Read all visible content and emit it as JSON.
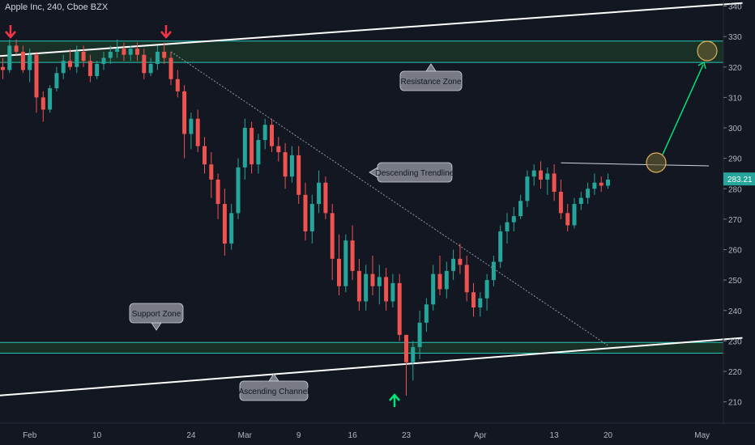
{
  "header": {
    "title": "Apple Inc, 240, Cboe BZX"
  },
  "chart_data": {
    "type": "candlestick",
    "symbol": "Apple Inc",
    "interval": "240",
    "exchange": "Cboe BZX",
    "y_ticks": [
      210,
      220,
      230,
      240,
      250,
      260,
      270,
      280,
      290,
      300,
      310,
      320,
      330,
      340
    ],
    "ylim": [
      203,
      342
    ],
    "x_ticks": [
      {
        "label": "Feb",
        "index": 4
      },
      {
        "label": "10",
        "index": 14
      },
      {
        "label": "24",
        "index": 28
      },
      {
        "label": "Mar",
        "index": 36
      },
      {
        "label": "9",
        "index": 44
      },
      {
        "label": "16",
        "index": 52
      },
      {
        "label": "23",
        "index": 60
      },
      {
        "label": "Apr",
        "index": 71
      },
      {
        "label": "13",
        "index": 82
      },
      {
        "label": "20",
        "index": 90
      },
      {
        "label": "May",
        "index": 104
      }
    ],
    "current_price": 283.21,
    "candles": [
      [
        320,
        323,
        316,
        319
      ],
      [
        319,
        329,
        318,
        327
      ],
      [
        327,
        329,
        324,
        325
      ],
      [
        325,
        327,
        318,
        319
      ],
      [
        319,
        326,
        315,
        324
      ],
      [
        324,
        325,
        305,
        310
      ],
      [
        310,
        312,
        302,
        306
      ],
      [
        306,
        314,
        305,
        313
      ],
      [
        313,
        320,
        312,
        318
      ],
      [
        318,
        324,
        316,
        322
      ],
      [
        322,
        326,
        319,
        320
      ],
      [
        320,
        327,
        318,
        325
      ],
      [
        325,
        327,
        320,
        322
      ],
      [
        322,
        324,
        315,
        317
      ],
      [
        317,
        322,
        316,
        321
      ],
      [
        321,
        325,
        319,
        323
      ],
      [
        323,
        327,
        321,
        325
      ],
      [
        325,
        329,
        323,
        326
      ],
      [
        326,
        328,
        322,
        324
      ],
      [
        324,
        327,
        322,
        326
      ],
      [
        326,
        328,
        322,
        324
      ],
      [
        324,
        326,
        316,
        318
      ],
      [
        318,
        323,
        317,
        321
      ],
      [
        321,
        327,
        319,
        325
      ],
      [
        325,
        328,
        321,
        323
      ],
      [
        323,
        325,
        314,
        316
      ],
      [
        316,
        319,
        310,
        312
      ],
      [
        312,
        314,
        290,
        298
      ],
      [
        298,
        305,
        293,
        303
      ],
      [
        303,
        306,
        292,
        294
      ],
      [
        294,
        297,
        285,
        288
      ],
      [
        288,
        292,
        277,
        283
      ],
      [
        283,
        285,
        270,
        275
      ],
      [
        275,
        280,
        258,
        262
      ],
      [
        262,
        275,
        260,
        272
      ],
      [
        272,
        290,
        270,
        287
      ],
      [
        287,
        303,
        283,
        300
      ],
      [
        300,
        302,
        285,
        288
      ],
      [
        288,
        298,
        285,
        296
      ],
      [
        296,
        303,
        293,
        301
      ],
      [
        301,
        303,
        292,
        294
      ],
      [
        294,
        297,
        289,
        292
      ],
      [
        292,
        295,
        280,
        284
      ],
      [
        284,
        294,
        282,
        291
      ],
      [
        291,
        294,
        275,
        278
      ],
      [
        278,
        282,
        263,
        266
      ],
      [
        266,
        278,
        262,
        275
      ],
      [
        275,
        286,
        272,
        282
      ],
      [
        282,
        284,
        270,
        272
      ],
      [
        272,
        275,
        250,
        257
      ],
      [
        257,
        265,
        245,
        248
      ],
      [
        248,
        265,
        246,
        263
      ],
      [
        263,
        268,
        250,
        253
      ],
      [
        253,
        257,
        240,
        243
      ],
      [
        243,
        255,
        240,
        252
      ],
      [
        252,
        258,
        245,
        248
      ],
      [
        248,
        255,
        242,
        251
      ],
      [
        251,
        254,
        240,
        243
      ],
      [
        243,
        252,
        241,
        249
      ],
      [
        249,
        252,
        230,
        232
      ],
      [
        232,
        232,
        212,
        223
      ],
      [
        223,
        230,
        217,
        228
      ],
      [
        228,
        240,
        224,
        236
      ],
      [
        236,
        244,
        233,
        242
      ],
      [
        242,
        255,
        240,
        252
      ],
      [
        252,
        258,
        245,
        247
      ],
      [
        247,
        256,
        244,
        253
      ],
      [
        253,
        260,
        250,
        257
      ],
      [
        257,
        262,
        252,
        255
      ],
      [
        255,
        258,
        243,
        246
      ],
      [
        246,
        249,
        238,
        241
      ],
      [
        241,
        246,
        238,
        244
      ],
      [
        244,
        252,
        240,
        250
      ],
      [
        250,
        258,
        248,
        256
      ],
      [
        256,
        268,
        254,
        266
      ],
      [
        266,
        272,
        262,
        269
      ],
      [
        269,
        274,
        266,
        271
      ],
      [
        271,
        278,
        270,
        276
      ],
      [
        276,
        286,
        274,
        284
      ],
      [
        284,
        288,
        281,
        286
      ],
      [
        286,
        289,
        280,
        283
      ],
      [
        283,
        287,
        278,
        285
      ],
      [
        285,
        288,
        276,
        279
      ],
      [
        279,
        283,
        270,
        272
      ],
      [
        272,
        275,
        266,
        268
      ],
      [
        268,
        277,
        267,
        275
      ],
      [
        275,
        279,
        273,
        277
      ],
      [
        277,
        282,
        275,
        280
      ],
      [
        280,
        285,
        278,
        282
      ],
      [
        282,
        284,
        279,
        281
      ],
      [
        281,
        285,
        280,
        283
      ]
    ],
    "zones": [
      {
        "name": "Resistance Zone",
        "low": 321.5,
        "high": 328.5
      },
      {
        "name": "Support Zone",
        "low": 226,
        "high": 229.5
      }
    ],
    "annotations": {
      "resistance_label": "Resistance Zone",
      "trendline_label": "Descending Trendline",
      "support_label": "Support Zone",
      "channel_label": "Ascending Channel"
    },
    "lines": [
      {
        "name": "channel-upper",
        "from": [
          -1,
          323.5
        ],
        "to": [
          110,
          341
        ]
      },
      {
        "name": "channel-lower",
        "from": [
          -1,
          212
        ],
        "to": [
          110,
          231
        ]
      },
      {
        "name": "descending-trendline",
        "from": [
          25,
          325
        ],
        "to": [
          90,
          228.5
        ],
        "style": "dotted"
      },
      {
        "name": "neckline",
        "from": [
          83,
          288.5
        ],
        "to": [
          105,
          287.5
        ]
      }
    ],
    "colors": {
      "up": "#26a69a",
      "down": "#ef5350",
      "zone_fill": "#1c3a2a",
      "zone_border": "#26c6b4",
      "price_badge": "#26a69a",
      "arrow_down": "#f23645",
      "arrow_up": "#00e676",
      "projection": "#00e676",
      "circle_fill": "#6b5f33",
      "circle_stroke": "#e0b15a",
      "background": "#131722",
      "axis_text": "#b2b5be"
    }
  }
}
